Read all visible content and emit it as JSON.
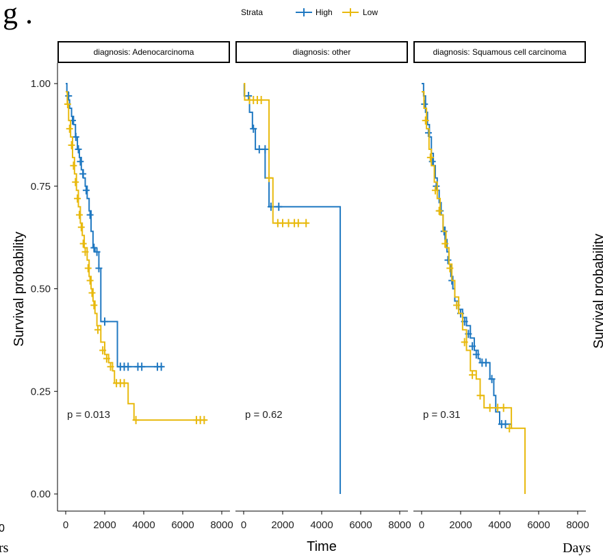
{
  "edge_text": {
    "top_left_glyph": "g .",
    "bottom_left_fragment": "rs",
    "left_zero_fragment": "0",
    "right_ylabel_fragment": "Survival probability",
    "right_xlabel_fragment": "Days"
  },
  "legend": {
    "title": "Strata",
    "items": [
      {
        "label": "High",
        "color": "#1f78c1"
      },
      {
        "label": "Low",
        "color": "#e8b90d"
      }
    ]
  },
  "colors": {
    "high": "#1f78c1",
    "low": "#e8b90d",
    "axis": "#000000"
  },
  "chart_data": {
    "type": "line",
    "subtype": "kaplan-meier survival curves, faceted",
    "xlabel": "Time",
    "ylabel": "Survival probability",
    "xlim": [
      0,
      8000
    ],
    "ylim": [
      0,
      1
    ],
    "x_ticks": [
      "0",
      "2000",
      "4000",
      "6000",
      "8000"
    ],
    "y_ticks": [
      "0.00",
      "0.25",
      "0.50",
      "0.75",
      "1.00"
    ],
    "legend_placement": "top",
    "panels": [
      {
        "strip": "diagnosis: Adenocarcinoma",
        "pvalue": "p = 0.013",
        "series": [
          {
            "name": "High",
            "steps": [
              [
                0,
                1.0
              ],
              [
                60,
                0.98
              ],
              [
                120,
                0.96
              ],
              [
                200,
                0.94
              ],
              [
                300,
                0.92
              ],
              [
                400,
                0.9
              ],
              [
                500,
                0.87
              ],
              [
                600,
                0.84
              ],
              [
                700,
                0.82
              ],
              [
                800,
                0.79
              ],
              [
                900,
                0.77
              ],
              [
                1000,
                0.75
              ],
              [
                1100,
                0.72
              ],
              [
                1200,
                0.69
              ],
              [
                1300,
                0.64
              ],
              [
                1400,
                0.6
              ],
              [
                1500,
                0.59
              ],
              [
                1700,
                0.55
              ],
              [
                1800,
                0.42
              ],
              [
                2650,
                0.31
              ],
              [
                5000,
                0.31
              ]
            ],
            "censor": [
              [
                150,
                0.97
              ],
              [
                350,
                0.91
              ],
              [
                520,
                0.87
              ],
              [
                650,
                0.84
              ],
              [
                750,
                0.81
              ],
              [
                880,
                0.78
              ],
              [
                1050,
                0.74
              ],
              [
                1250,
                0.68
              ],
              [
                1450,
                0.6
              ],
              [
                1600,
                0.59
              ],
              [
                1700,
                0.55
              ],
              [
                2000,
                0.42
              ],
              [
                2800,
                0.31
              ],
              [
                3000,
                0.31
              ],
              [
                3200,
                0.31
              ],
              [
                3700,
                0.31
              ],
              [
                3900,
                0.31
              ],
              [
                4700,
                0.31
              ],
              [
                4900,
                0.31
              ]
            ]
          },
          {
            "name": "Low",
            "steps": [
              [
                0,
                0.98
              ],
              [
                80,
                0.95
              ],
              [
                150,
                0.91
              ],
              [
                250,
                0.87
              ],
              [
                350,
                0.82
              ],
              [
                450,
                0.78
              ],
              [
                550,
                0.74
              ],
              [
                650,
                0.7
              ],
              [
                750,
                0.66
              ],
              [
                850,
                0.63
              ],
              [
                950,
                0.6
              ],
              [
                1100,
                0.57
              ],
              [
                1200,
                0.53
              ],
              [
                1300,
                0.5
              ],
              [
                1400,
                0.47
              ],
              [
                1500,
                0.44
              ],
              [
                1600,
                0.41
              ],
              [
                1800,
                0.37
              ],
              [
                2000,
                0.34
              ],
              [
                2200,
                0.32
              ],
              [
                2400,
                0.3
              ],
              [
                2500,
                0.27
              ],
              [
                3200,
                0.22
              ],
              [
                3500,
                0.18
              ],
              [
                7200,
                0.18
              ]
            ],
            "censor": [
              [
                100,
                0.95
              ],
              [
                200,
                0.89
              ],
              [
                300,
                0.85
              ],
              [
                400,
                0.8
              ],
              [
                500,
                0.76
              ],
              [
                600,
                0.72
              ],
              [
                700,
                0.68
              ],
              [
                800,
                0.65
              ],
              [
                900,
                0.61
              ],
              [
                1000,
                0.59
              ],
              [
                1150,
                0.55
              ],
              [
                1250,
                0.52
              ],
              [
                1350,
                0.49
              ],
              [
                1450,
                0.46
              ],
              [
                1650,
                0.4
              ],
              [
                1900,
                0.35
              ],
              [
                2100,
                0.33
              ],
              [
                2300,
                0.31
              ],
              [
                2600,
                0.27
              ],
              [
                2800,
                0.27
              ],
              [
                3000,
                0.27
              ],
              [
                3600,
                0.18
              ],
              [
                6700,
                0.18
              ],
              [
                6900,
                0.18
              ],
              [
                7100,
                0.18
              ]
            ]
          }
        ]
      },
      {
        "strip": "diagnosis: other",
        "pvalue": "p = 0.62",
        "series": [
          {
            "name": "High",
            "steps": [
              [
                0,
                1.0
              ],
              [
                30,
                0.97
              ],
              [
                300,
                0.93
              ],
              [
                450,
                0.89
              ],
              [
                600,
                0.84
              ],
              [
                1100,
                0.77
              ],
              [
                1300,
                0.7
              ],
              [
                4950,
                0.7
              ],
              [
                4950,
                0.0
              ]
            ],
            "censor": [
              [
                250,
                0.97
              ],
              [
                500,
                0.89
              ],
              [
                800,
                0.84
              ],
              [
                1100,
                0.84
              ],
              [
                1400,
                0.7
              ],
              [
                1800,
                0.7
              ]
            ]
          },
          {
            "name": "Low",
            "steps": [
              [
                0,
                1.0
              ],
              [
                50,
                0.96
              ],
              [
                1300,
                0.77
              ],
              [
                1500,
                0.66
              ],
              [
                3300,
                0.66
              ]
            ],
            "censor": [
              [
                300,
                0.96
              ],
              [
                500,
                0.96
              ],
              [
                700,
                0.96
              ],
              [
                900,
                0.96
              ],
              [
                1300,
                0.77
              ],
              [
                1750,
                0.66
              ],
              [
                2000,
                0.66
              ],
              [
                2300,
                0.66
              ],
              [
                2600,
                0.66
              ],
              [
                2800,
                0.66
              ],
              [
                3200,
                0.66
              ]
            ]
          }
        ]
      },
      {
        "strip": "diagnosis: Squamous cell carcinoma",
        "pvalue": "p = 0.31",
        "series": [
          {
            "name": "High",
            "steps": [
              [
                0,
                1.0
              ],
              [
                100,
                0.97
              ],
              [
                200,
                0.93
              ],
              [
                300,
                0.9
              ],
              [
                400,
                0.87
              ],
              [
                500,
                0.83
              ],
              [
                600,
                0.8
              ],
              [
                700,
                0.77
              ],
              [
                800,
                0.74
              ],
              [
                900,
                0.71
              ],
              [
                1000,
                0.68
              ],
              [
                1100,
                0.65
              ],
              [
                1200,
                0.62
              ],
              [
                1300,
                0.59
              ],
              [
                1400,
                0.56
              ],
              [
                1500,
                0.53
              ],
              [
                1600,
                0.5
              ],
              [
                1700,
                0.47
              ],
              [
                1900,
                0.45
              ],
              [
                2100,
                0.43
              ],
              [
                2300,
                0.41
              ],
              [
                2500,
                0.38
              ],
              [
                2700,
                0.35
              ],
              [
                2900,
                0.33
              ],
              [
                3000,
                0.32
              ],
              [
                3500,
                0.28
              ],
              [
                3700,
                0.24
              ],
              [
                3800,
                0.2
              ],
              [
                4000,
                0.17
              ],
              [
                4600,
                0.16
              ]
            ],
            "censor": [
              [
                150,
                0.95
              ],
              [
                350,
                0.88
              ],
              [
                550,
                0.81
              ],
              [
                750,
                0.75
              ],
              [
                950,
                0.69
              ],
              [
                1150,
                0.64
              ],
              [
                1350,
                0.57
              ],
              [
                1550,
                0.52
              ],
              [
                1800,
                0.46
              ],
              [
                2000,
                0.44
              ],
              [
                2200,
                0.42
              ],
              [
                2400,
                0.39
              ],
              [
                2600,
                0.36
              ],
              [
                2800,
                0.34
              ],
              [
                3100,
                0.32
              ],
              [
                3300,
                0.32
              ],
              [
                3600,
                0.28
              ],
              [
                4100,
                0.17
              ],
              [
                4300,
                0.17
              ]
            ]
          },
          {
            "name": "Low",
            "steps": [
              [
                0,
                0.98
              ],
              [
                120,
                0.94
              ],
              [
                250,
                0.89
              ],
              [
                380,
                0.84
              ],
              [
                500,
                0.8
              ],
              [
                650,
                0.76
              ],
              [
                800,
                0.72
              ],
              [
                950,
                0.68
              ],
              [
                1100,
                0.64
              ],
              [
                1250,
                0.6
              ],
              [
                1400,
                0.56
              ],
              [
                1550,
                0.52
              ],
              [
                1700,
                0.48
              ],
              [
                1900,
                0.44
              ],
              [
                2100,
                0.4
              ],
              [
                2300,
                0.35
              ],
              [
                2500,
                0.3
              ],
              [
                2800,
                0.28
              ],
              [
                3000,
                0.24
              ],
              [
                3200,
                0.21
              ],
              [
                4600,
                0.16
              ],
              [
                5300,
                0.16
              ],
              [
                5300,
                0.0
              ]
            ],
            "censor": [
              [
                200,
                0.91
              ],
              [
                450,
                0.82
              ],
              [
                700,
                0.74
              ],
              [
                900,
                0.69
              ],
              [
                1200,
                0.61
              ],
              [
                1450,
                0.55
              ],
              [
                1800,
                0.46
              ],
              [
                2200,
                0.37
              ],
              [
                2600,
                0.29
              ],
              [
                3000,
                0.24
              ],
              [
                3500,
                0.21
              ],
              [
                3900,
                0.21
              ],
              [
                4200,
                0.21
              ],
              [
                4500,
                0.16
              ]
            ]
          }
        ]
      }
    ]
  }
}
